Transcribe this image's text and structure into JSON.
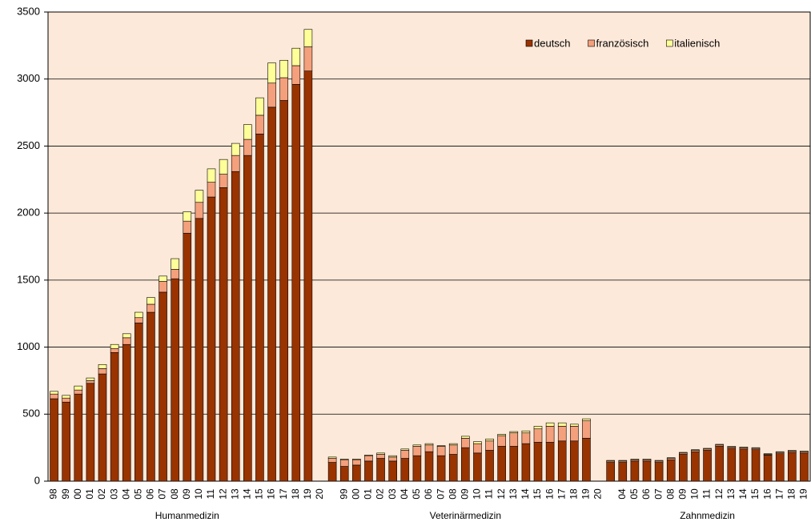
{
  "chart_data": {
    "type": "bar",
    "stacked": true,
    "grid": true,
    "legend": "top-right",
    "ylim": [
      0,
      3500
    ],
    "yticks": [
      0,
      500,
      1000,
      1500,
      2000,
      2500,
      3000,
      3500
    ],
    "groups": [
      {
        "name": "Humanmedizin",
        "categories": [
          "98",
          "99",
          "00",
          "01",
          "02",
          "03",
          "04",
          "05",
          "06",
          "07",
          "08",
          "09",
          "10",
          "11",
          "12",
          "13",
          "14",
          "15",
          "16",
          "17",
          "18",
          "19",
          "20"
        ]
      },
      {
        "name": "Veterinärmedizin",
        "categories": [
          null,
          "99",
          "00",
          "01",
          "02",
          "03",
          "04",
          "05",
          "06",
          "07",
          "08",
          "09",
          "10",
          "11",
          "12",
          "13",
          "14",
          "15",
          "16",
          "17",
          "18",
          "19",
          "20"
        ]
      },
      {
        "name": "Zahnmedizin",
        "categories": [
          null,
          "04",
          "05",
          "06",
          "07",
          "08",
          "09",
          "10",
          "11",
          "12",
          "13",
          "14",
          "15",
          "16",
          "17",
          "18",
          "19"
        ]
      }
    ],
    "series": [
      {
        "name": "deutsch",
        "color": "#993300",
        "values": [
          [
            615,
            590,
            650,
            730,
            800,
            960,
            1020,
            1180,
            1260,
            1410,
            1510,
            1850,
            1960,
            2120,
            2190,
            2310,
            2430,
            2590,
            2790,
            2840,
            2960,
            3060,
            null
          ],
          [
            140,
            110,
            120,
            150,
            170,
            150,
            170,
            190,
            220,
            190,
            200,
            250,
            210,
            230,
            260,
            260,
            280,
            290,
            290,
            300,
            300,
            320,
            null
          ],
          [
            140,
            140,
            150,
            150,
            140,
            160,
            200,
            220,
            230,
            260,
            245,
            240,
            235,
            195,
            205,
            215,
            210
          ]
        ]
      },
      {
        "name": "französisch",
        "color": "#f4a07c",
        "values": [
          [
            35,
            30,
            30,
            20,
            40,
            30,
            50,
            40,
            60,
            80,
            70,
            90,
            120,
            110,
            100,
            120,
            120,
            140,
            180,
            170,
            140,
            180,
            null
          ],
          [
            30,
            50,
            40,
            40,
            30,
            30,
            60,
            70,
            50,
            70,
            70,
            70,
            70,
            70,
            80,
            100,
            80,
            100,
            120,
            110,
            110,
            130,
            null
          ],
          [
            10,
            10,
            10,
            10,
            10,
            10,
            10,
            10,
            10,
            10,
            10,
            10,
            10,
            5,
            10,
            10,
            10
          ]
        ]
      },
      {
        "name": "italienisch",
        "color": "#ffff99",
        "values": [
          [
            20,
            20,
            30,
            20,
            30,
            30,
            30,
            40,
            50,
            40,
            80,
            70,
            90,
            100,
            110,
            90,
            110,
            130,
            150,
            130,
            130,
            130,
            null
          ],
          [
            10,
            5,
            5,
            5,
            10,
            10,
            10,
            10,
            10,
            5,
            10,
            15,
            15,
            15,
            10,
            10,
            15,
            20,
            25,
            25,
            15,
            15,
            null
          ],
          [
            5,
            5,
            5,
            5,
            5,
            5,
            5,
            5,
            5,
            5,
            5,
            5,
            5,
            5,
            5,
            5,
            5
          ]
        ]
      }
    ]
  }
}
